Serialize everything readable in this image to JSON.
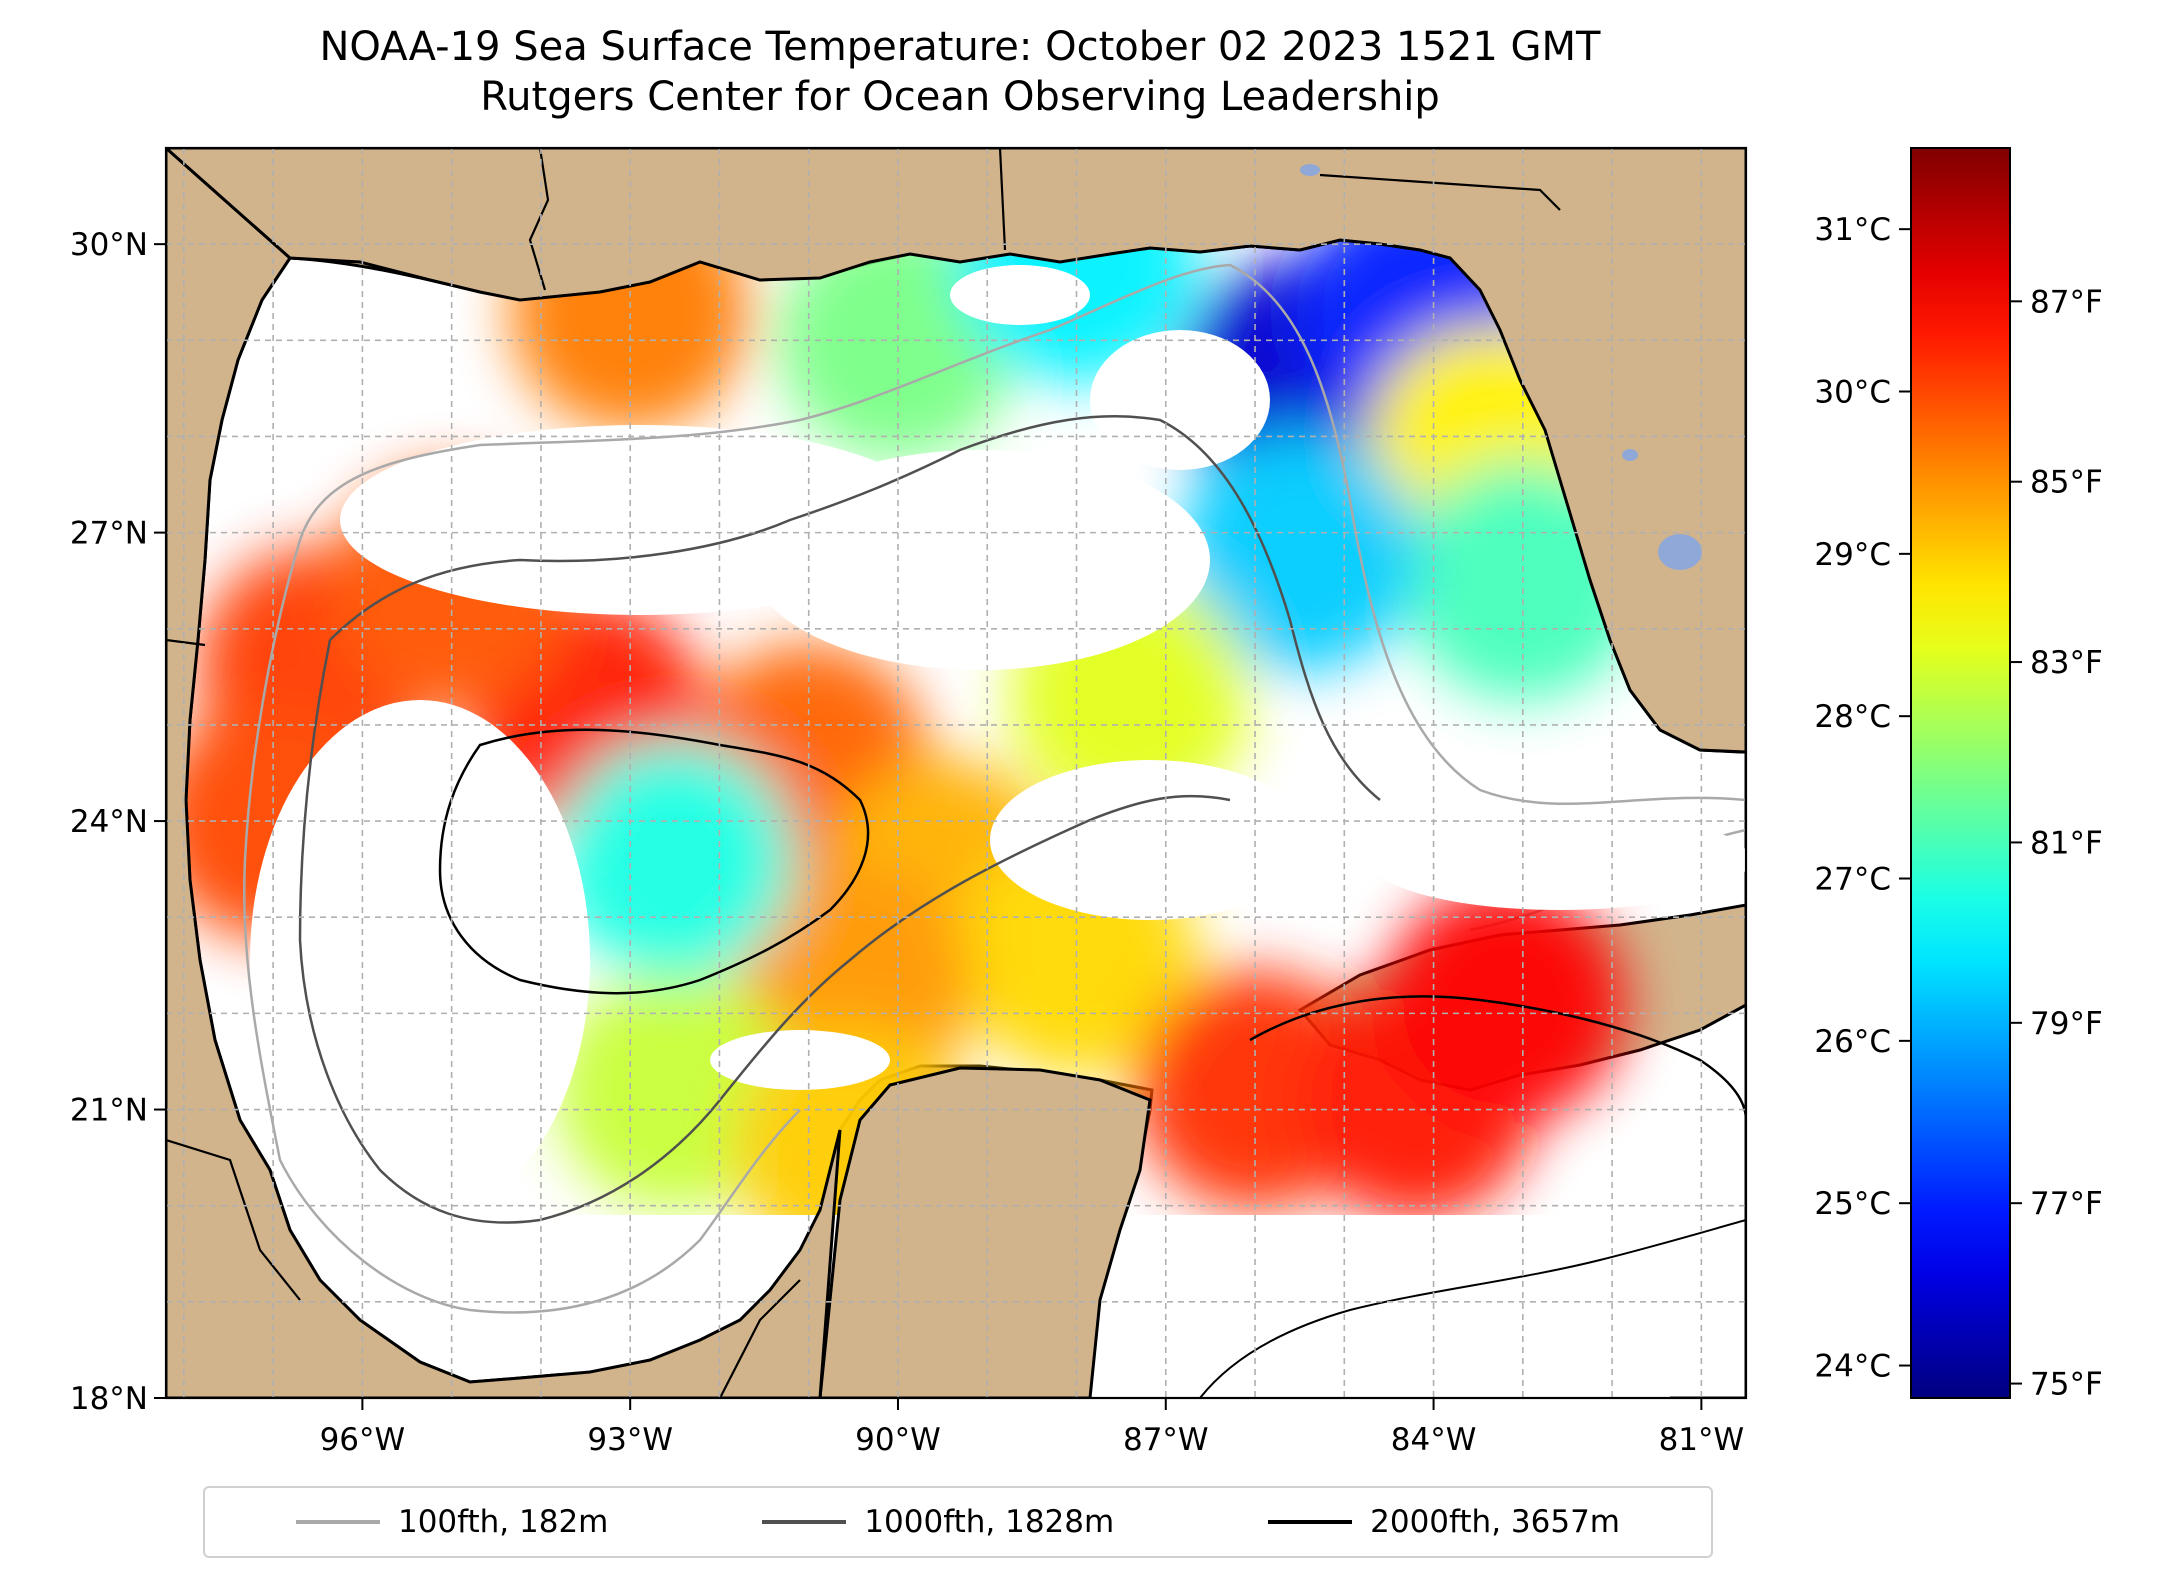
{
  "title": {
    "line1": "NOAA-19 Sea Surface Temperature: October 02 2023 1521 GMT",
    "line2": "Rutgers Center for Ocean Observing Leadership"
  },
  "map": {
    "region": "Gulf of Mexico",
    "lon_range": [
      -98.2,
      -80.5
    ],
    "lat_range": [
      18.0,
      31.0
    ],
    "colors": {
      "land": "#d2b48c",
      "no_data": "#ffffff",
      "coast": "#000000",
      "gridline": "#b0b0b0",
      "lake": "#8fa8d8"
    },
    "lon_ticks": [
      {
        "value": -96,
        "label": "96°W"
      },
      {
        "value": -93,
        "label": "93°W"
      },
      {
        "value": -90,
        "label": "90°W"
      },
      {
        "value": -87,
        "label": "87°W"
      },
      {
        "value": -84,
        "label": "84°W"
      },
      {
        "value": -81,
        "label": "81°W"
      }
    ],
    "lat_ticks": [
      {
        "value": 18,
        "label": "18°N"
      },
      {
        "value": 21,
        "label": "21°N"
      },
      {
        "value": 24,
        "label": "24°N"
      },
      {
        "value": 27,
        "label": "27°N"
      },
      {
        "value": 30,
        "label": "30°N"
      }
    ],
    "sst_patches": [
      {
        "lon": -93.0,
        "lat": 29.3,
        "temp_c": 29.6
      },
      {
        "lon": -90.0,
        "lat": 29.0,
        "temp_c": 27.6
      },
      {
        "lon": -88.0,
        "lat": 29.8,
        "temp_c": 26.6
      },
      {
        "lon": -85.5,
        "lat": 28.6,
        "temp_c": 24.4
      },
      {
        "lon": -84.2,
        "lat": 29.3,
        "temp_c": 25.0
      },
      {
        "lon": -83.4,
        "lat": 27.9,
        "temp_c": 28.7
      },
      {
        "lon": -83.0,
        "lat": 26.5,
        "temp_c": 27.2
      },
      {
        "lon": -85.5,
        "lat": 26.8,
        "temp_c": 26.3
      },
      {
        "lon": -96.5,
        "lat": 25.6,
        "temp_c": 30.1
      },
      {
        "lon": -93.5,
        "lat": 25.1,
        "temp_c": 30.3
      },
      {
        "lon": -95.0,
        "lat": 26.4,
        "temp_c": 29.9
      },
      {
        "lon": -91.0,
        "lat": 24.6,
        "temp_c": 29.8
      },
      {
        "lon": -89.5,
        "lat": 23.4,
        "temp_c": 29.2
      },
      {
        "lon": -88.0,
        "lat": 22.6,
        "temp_c": 28.9
      },
      {
        "lon": -90.5,
        "lat": 22.3,
        "temp_c": 29.4
      },
      {
        "lon": -86.0,
        "lat": 21.2,
        "temp_c": 30.2
      },
      {
        "lon": -84.2,
        "lat": 21.1,
        "temp_c": 30.4
      },
      {
        "lon": -83.2,
        "lat": 22.1,
        "temp_c": 30.5
      },
      {
        "lon": -92.5,
        "lat": 21.2,
        "temp_c": 28.2
      },
      {
        "lon": -90.5,
        "lat": 20.6,
        "temp_c": 29.0
      },
      {
        "lon": -97.0,
        "lat": 24.0,
        "temp_c": 30.0
      },
      {
        "lon": -92.5,
        "lat": 23.6,
        "temp_c": 26.9
      },
      {
        "lon": -87.4,
        "lat": 25.3,
        "temp_c": 28.4
      }
    ]
  },
  "colorbar": {
    "min_c": 23.8,
    "max_c": 31.5,
    "colormap": "jet",
    "celsius_ticks": [
      {
        "value": 24,
        "label": "24°C"
      },
      {
        "value": 25,
        "label": "25°C"
      },
      {
        "value": 26,
        "label": "26°C"
      },
      {
        "value": 27,
        "label": "27°C"
      },
      {
        "value": 28,
        "label": "28°C"
      },
      {
        "value": 29,
        "label": "29°C"
      },
      {
        "value": 30,
        "label": "30°C"
      },
      {
        "value": 31,
        "label": "31°C"
      }
    ],
    "fahrenheit_ticks": [
      {
        "value": 75,
        "label": "75°F"
      },
      {
        "value": 77,
        "label": "77°F"
      },
      {
        "value": 79,
        "label": "79°F"
      },
      {
        "value": 81,
        "label": "81°F"
      },
      {
        "value": 83,
        "label": "83°F"
      },
      {
        "value": 85,
        "label": "85°F"
      },
      {
        "value": 87,
        "label": "87°F"
      }
    ]
  },
  "legend": {
    "items": [
      {
        "label": "100fth, 182m",
        "color": "#a9a9a9"
      },
      {
        "label": "1000fth, 1828m",
        "color": "#505050"
      },
      {
        "label": "2000fth, 3657m",
        "color": "#000000"
      }
    ]
  }
}
